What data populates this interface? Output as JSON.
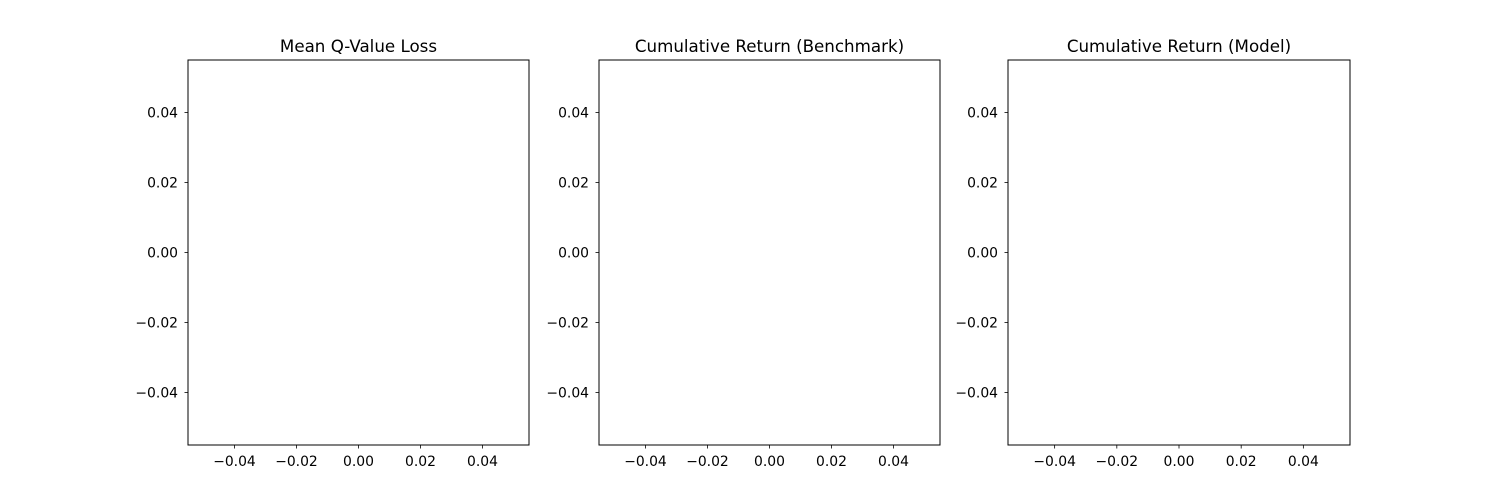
{
  "chart_data": [
    {
      "type": "line",
      "title": "Mean Q-Value Loss",
      "xlabel": "",
      "ylabel": "",
      "series": [],
      "xlim": [
        -0.055,
        0.055
      ],
      "ylim": [
        -0.055,
        0.055
      ],
      "xticks": [
        -0.04,
        -0.02,
        0.0,
        0.02,
        0.04
      ],
      "yticks": [
        -0.04,
        -0.02,
        0.0,
        0.02,
        0.04
      ],
      "xtick_labels": [
        "−0.04",
        "−0.02",
        "0.00",
        "0.02",
        "0.04"
      ],
      "ytick_labels": [
        "−0.04",
        "−0.02",
        "0.00",
        "0.02",
        "0.04"
      ],
      "grid": false
    },
    {
      "type": "line",
      "title": "Cumulative Return (Benchmark)",
      "xlabel": "",
      "ylabel": "",
      "series": [],
      "xlim": [
        -0.055,
        0.055
      ],
      "ylim": [
        -0.055,
        0.055
      ],
      "xticks": [
        -0.04,
        -0.02,
        0.0,
        0.02,
        0.04
      ],
      "yticks": [
        -0.04,
        -0.02,
        0.0,
        0.02,
        0.04
      ],
      "xtick_labels": [
        "−0.04",
        "−0.02",
        "0.00",
        "0.02",
        "0.04"
      ],
      "ytick_labels": [
        "−0.04",
        "−0.02",
        "0.00",
        "0.02",
        "0.04"
      ],
      "grid": false
    },
    {
      "type": "line",
      "title": "Cumulative Return (Model)",
      "xlabel": "",
      "ylabel": "",
      "series": [],
      "xlim": [
        -0.055,
        0.055
      ],
      "ylim": [
        -0.055,
        0.055
      ],
      "xticks": [
        -0.04,
        -0.02,
        0.0,
        0.02,
        0.04
      ],
      "yticks": [
        -0.04,
        -0.02,
        0.0,
        0.02,
        0.04
      ],
      "xtick_labels": [
        "−0.04",
        "−0.02",
        "0.00",
        "0.02",
        "0.04"
      ],
      "ytick_labels": [
        "−0.04",
        "−0.02",
        "0.00",
        "0.02",
        "0.04"
      ],
      "grid": false
    }
  ]
}
